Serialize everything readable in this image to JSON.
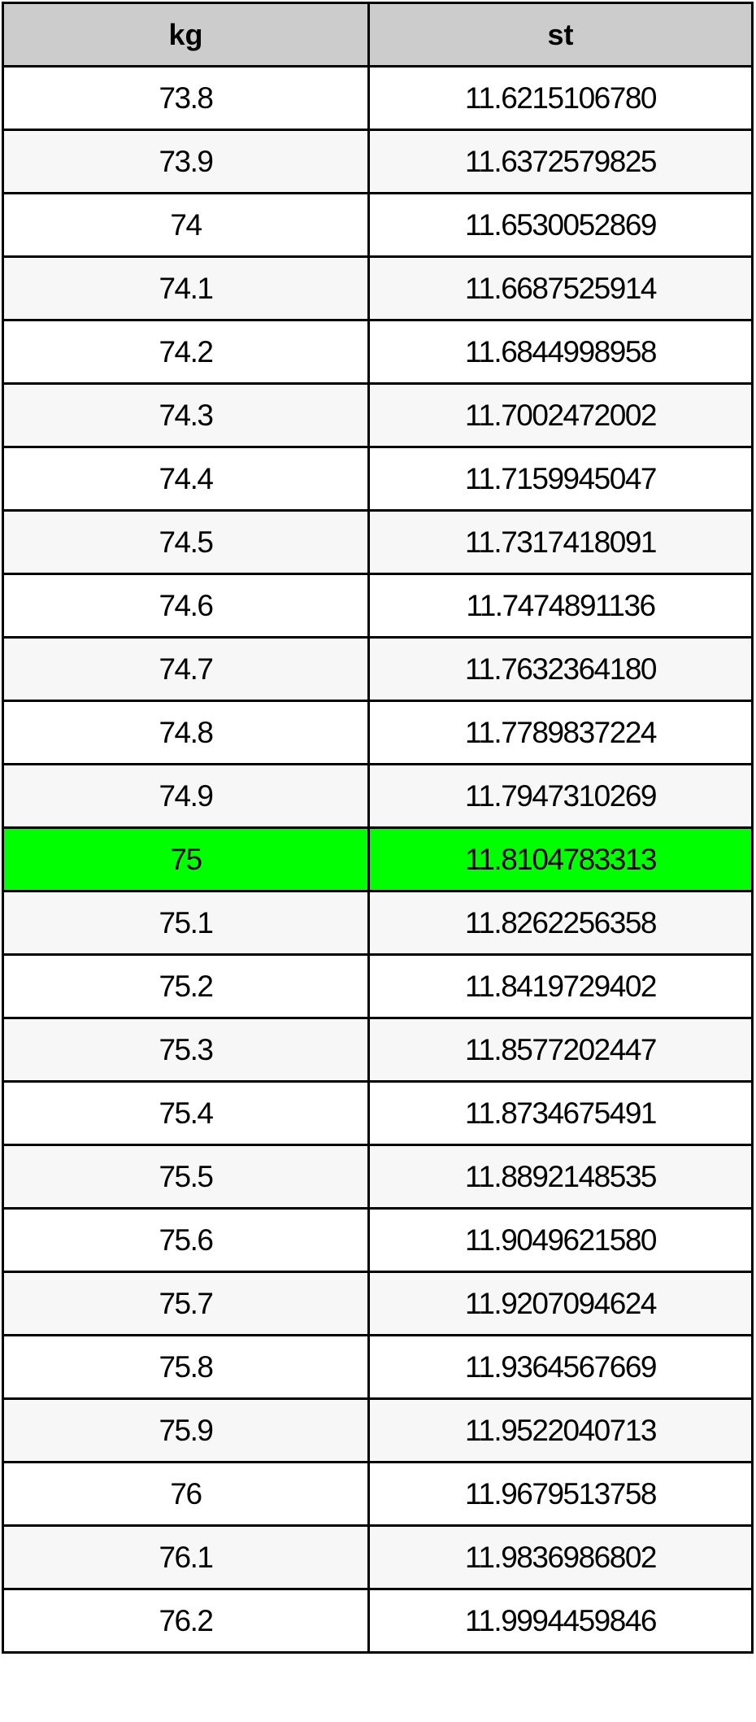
{
  "table": {
    "headers": [
      "kg",
      "st"
    ],
    "highlight_color": "#00ff00",
    "highlight_row": 12,
    "rows": [
      [
        "73.8",
        "11.6215106780"
      ],
      [
        "73.9",
        "11.6372579825"
      ],
      [
        "74",
        "11.6530052869"
      ],
      [
        "74.1",
        "11.6687525914"
      ],
      [
        "74.2",
        "11.6844998958"
      ],
      [
        "74.3",
        "11.7002472002"
      ],
      [
        "74.4",
        "11.7159945047"
      ],
      [
        "74.5",
        "11.7317418091"
      ],
      [
        "74.6",
        "11.7474891136"
      ],
      [
        "74.7",
        "11.7632364180"
      ],
      [
        "74.8",
        "11.7789837224"
      ],
      [
        "74.9",
        "11.7947310269"
      ],
      [
        "75",
        "11.8104783313"
      ],
      [
        "75.1",
        "11.8262256358"
      ],
      [
        "75.2",
        "11.8419729402"
      ],
      [
        "75.3",
        "11.8577202447"
      ],
      [
        "75.4",
        "11.8734675491"
      ],
      [
        "75.5",
        "11.8892148535"
      ],
      [
        "75.6",
        "11.9049621580"
      ],
      [
        "75.7",
        "11.9207094624"
      ],
      [
        "75.8",
        "11.9364567669"
      ],
      [
        "75.9",
        "11.9522040713"
      ],
      [
        "76",
        "11.9679513758"
      ],
      [
        "76.1",
        "11.9836986802"
      ],
      [
        "76.2",
        "11.9994459846"
      ]
    ]
  }
}
